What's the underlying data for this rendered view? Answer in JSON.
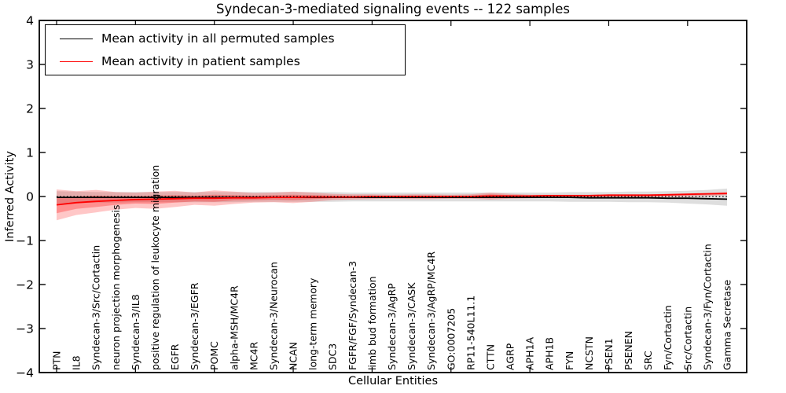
{
  "figure": {
    "title": "Syndecan-3-mediated signaling events -- 122 samples",
    "xlabel": "Cellular Entities",
    "ylabel": "Inferred Activity"
  },
  "chart_data": {
    "type": "line",
    "title": "Syndecan-3-mediated signaling events -- 122 samples",
    "xlabel": "Cellular Entities",
    "ylabel": "Inferred Activity",
    "ylim": [
      -4,
      4
    ],
    "yticks": [
      4,
      3,
      2,
      1,
      0,
      -1,
      -2,
      -3,
      -4
    ],
    "ytick_labels": [
      "4",
      "3",
      "2",
      "1",
      "0",
      "−1",
      "−2",
      "−3",
      "−4"
    ],
    "grid": false,
    "zero_line": true,
    "legend_position": "upper left",
    "categories": [
      "PTN",
      "IL8",
      "Syndecan-3/Src/Cortactin",
      "neuron projection morphogenesis",
      "Syndecan-3/IL8",
      "positive regulation of leukocyte migration",
      "EGFR",
      "Syndecan-3/EGFR",
      "POMC",
      "alpha-MSH/MC4R",
      "MC4R",
      "Syndecan-3/Neurocan",
      "NCAN",
      "long-term memory",
      "SDC3",
      "FGFR/FGF/Syndecan-3",
      "limb bud formation",
      "Syndecan-3/AgRP",
      "Syndecan-3/CASK",
      "Syndecan-3/AgRP/MC4R",
      "GO:0007205",
      "RP11-540L11.1",
      "CTTN",
      "AGRP",
      "APH1A",
      "APH1B",
      "FYN",
      "NCSTN",
      "PSEN1",
      "PSENEN",
      "SRC",
      "Fyn/Cortactin",
      "Src/Cortactin",
      "Syndecan-3/Fyn/Cortactin",
      "Gamma Secretase"
    ],
    "series": [
      {
        "name": "Mean activity in all permuted samples",
        "color": "#000000",
        "values": [
          -0.02,
          -0.02,
          -0.02,
          -0.02,
          -0.02,
          -0.02,
          -0.02,
          -0.02,
          -0.02,
          -0.02,
          -0.02,
          -0.02,
          -0.02,
          -0.02,
          -0.02,
          -0.02,
          -0.02,
          -0.02,
          -0.02,
          -0.02,
          -0.02,
          -0.02,
          -0.02,
          -0.02,
          -0.02,
          -0.02,
          -0.02,
          -0.03,
          -0.03,
          -0.03,
          -0.03,
          -0.04,
          -0.04,
          -0.05,
          -0.06
        ]
      },
      {
        "name": "Mean activity in patient samples",
        "color": "#ff0000",
        "values": [
          -0.19,
          -0.14,
          -0.11,
          -0.09,
          -0.07,
          -0.06,
          -0.05,
          -0.04,
          -0.04,
          -0.03,
          -0.03,
          -0.02,
          -0.02,
          -0.01,
          -0.01,
          -0.01,
          0.0,
          0.0,
          0.0,
          0.0,
          0.0,
          0.0,
          0.01,
          0.01,
          0.01,
          0.02,
          0.02,
          0.02,
          0.03,
          0.03,
          0.03,
          0.04,
          0.05,
          0.06,
          0.07
        ]
      }
    ],
    "bands": [
      {
        "name": "permuted-sample-range",
        "color": "rgba(0,0,0,0.13)",
        "top": [
          0.12,
          0.11,
          0.1,
          0.1,
          0.1,
          0.1,
          0.1,
          0.1,
          0.1,
          0.1,
          0.1,
          0.1,
          0.1,
          0.1,
          0.1,
          0.09,
          0.09,
          0.09,
          0.09,
          0.09,
          0.09,
          0.09,
          0.09,
          0.09,
          0.09,
          0.09,
          0.1,
          0.1,
          0.1,
          0.11,
          0.11,
          0.12,
          0.13,
          0.15,
          0.18
        ],
        "bottom": [
          -0.16,
          -0.15,
          -0.14,
          -0.14,
          -0.13,
          -0.13,
          -0.13,
          -0.13,
          -0.13,
          -0.13,
          -0.12,
          -0.12,
          -0.12,
          -0.12,
          -0.12,
          -0.11,
          -0.11,
          -0.11,
          -0.11,
          -0.11,
          -0.11,
          -0.11,
          -0.11,
          -0.11,
          -0.11,
          -0.11,
          -0.12,
          -0.12,
          -0.12,
          -0.13,
          -0.13,
          -0.14,
          -0.16,
          -0.18,
          -0.21
        ]
      },
      {
        "name": "patient-sample-range-outer",
        "color": "rgba(255,0,0,0.22)",
        "top": [
          0.16,
          0.12,
          0.15,
          0.1,
          0.09,
          0.11,
          0.13,
          0.09,
          0.14,
          0.11,
          0.08,
          0.09,
          0.11,
          0.09,
          0.06,
          0.05,
          0.05,
          0.04,
          0.05,
          0.05,
          0.04,
          0.05,
          0.09,
          0.06,
          0.04,
          0.04,
          0.04,
          0.04,
          0.05,
          0.05,
          0.05,
          0.06,
          0.07,
          0.08,
          0.1
        ],
        "bottom": [
          -0.54,
          -0.42,
          -0.36,
          -0.3,
          -0.26,
          -0.28,
          -0.24,
          -0.19,
          -0.21,
          -0.17,
          -0.14,
          -0.13,
          -0.15,
          -0.12,
          -0.08,
          -0.07,
          -0.06,
          -0.05,
          -0.06,
          -0.06,
          -0.05,
          -0.05,
          -0.07,
          -0.05,
          -0.04,
          -0.03,
          -0.03,
          -0.03,
          -0.02,
          -0.02,
          -0.02,
          -0.01,
          0.0,
          0.01,
          0.03
        ]
      },
      {
        "name": "patient-sample-range-inner",
        "color": "rgba(255,0,0,0.28)",
        "top": [
          -0.02,
          0.0,
          0.02,
          0.01,
          0.01,
          0.02,
          0.03,
          0.02,
          0.04,
          0.03,
          0.02,
          0.03,
          0.04,
          0.03,
          0.02,
          0.01,
          0.02,
          0.01,
          0.02,
          0.02,
          0.01,
          0.02,
          0.05,
          0.03,
          0.02,
          0.03,
          0.03,
          0.03,
          0.04,
          0.04,
          0.04,
          0.05,
          0.06,
          0.07,
          0.09
        ],
        "bottom": [
          -0.38,
          -0.28,
          -0.24,
          -0.19,
          -0.16,
          -0.17,
          -0.14,
          -0.11,
          -0.12,
          -0.09,
          -0.08,
          -0.07,
          -0.08,
          -0.06,
          -0.04,
          -0.03,
          -0.02,
          -0.02,
          -0.02,
          -0.02,
          -0.02,
          -0.02,
          -0.03,
          -0.02,
          -0.01,
          0.0,
          0.0,
          0.0,
          0.01,
          0.01,
          0.01,
          0.02,
          0.03,
          0.04,
          0.05
        ]
      }
    ]
  },
  "legend": {
    "entries": [
      {
        "label": "Mean activity in all permuted samples",
        "color": "#000000"
      },
      {
        "label": "Mean activity in patient samples",
        "color": "#ff0000"
      }
    ]
  },
  "colors": {
    "permuted_line": "#000000",
    "patient_line": "#ff0000",
    "axes": "#000000",
    "background": "#ffffff"
  }
}
